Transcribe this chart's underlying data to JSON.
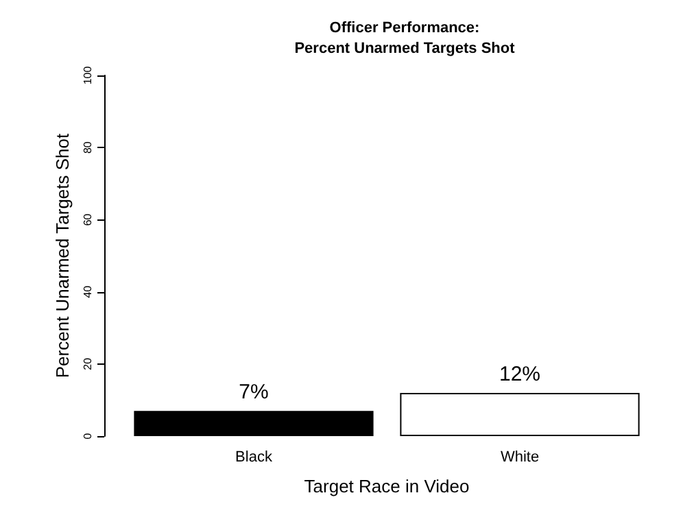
{
  "chart_data": {
    "type": "bar",
    "title": "Officer Performance:\nPercent Unarmed Targets Shot",
    "xlabel": "Target Race in Video",
    "ylabel": "Percent Unarmed Targets Shot",
    "categories": [
      "Black",
      "White"
    ],
    "values": [
      7,
      12
    ],
    "colors": [
      "#000000",
      "#ffffff"
    ],
    "value_labels": [
      "7%",
      "12%"
    ],
    "ylim": [
      0,
      100
    ],
    "yticks": [
      0,
      20,
      40,
      60,
      80,
      100
    ],
    "grid": false
  }
}
